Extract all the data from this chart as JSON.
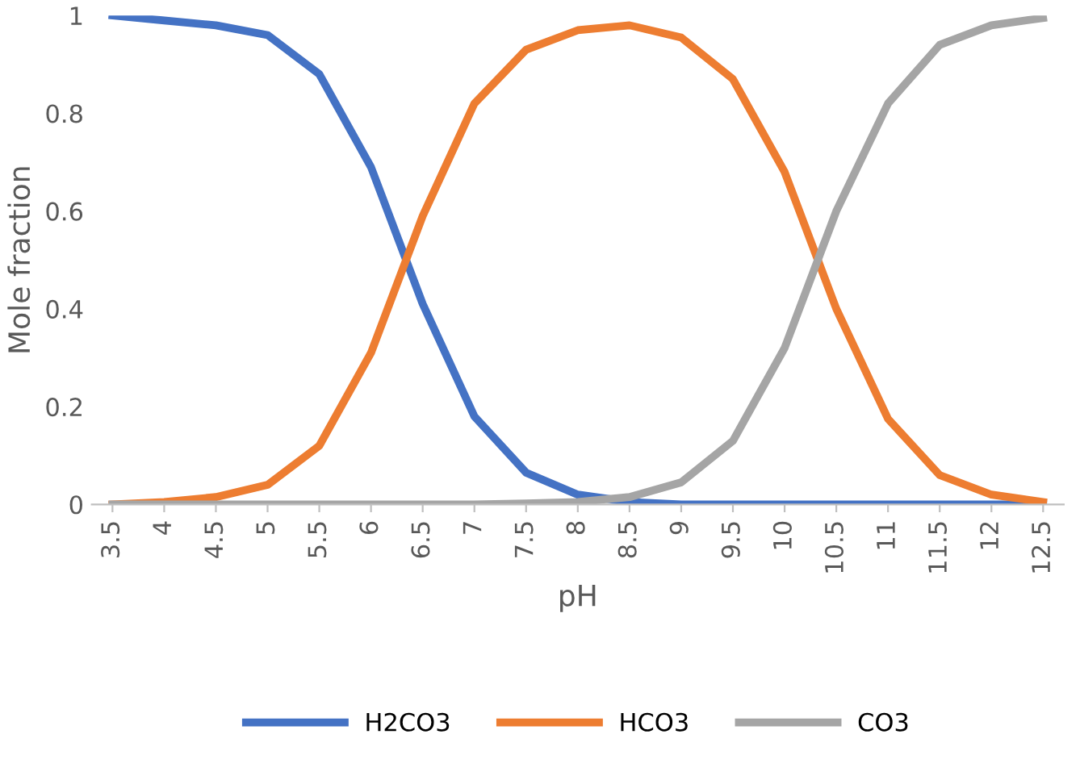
{
  "chart_data": {
    "type": "line",
    "xlabel": "pH",
    "ylabel": "Mole fraction",
    "categories": [
      "3.5",
      "4",
      "4.5",
      "5",
      "5.5",
      "6",
      "6.5",
      "7",
      "7.5",
      "8",
      "8.5",
      "9",
      "9.5",
      "10",
      "10.5",
      "11",
      "11.5",
      "12",
      "12.5"
    ],
    "series": [
      {
        "name": "H2CO3",
        "color": "#4472c4",
        "values": [
          1.0,
          0.99,
          0.98,
          0.96,
          0.88,
          0.69,
          0.41,
          0.18,
          0.065,
          0.02,
          0.005,
          0,
          0,
          0,
          0,
          0,
          0,
          0,
          0
        ]
      },
      {
        "name": "HCO3",
        "color": "#ed7d31",
        "values": [
          0,
          0.005,
          0.015,
          0.04,
          0.12,
          0.31,
          0.59,
          0.82,
          0.93,
          0.97,
          0.98,
          0.955,
          0.87,
          0.68,
          0.4,
          0.175,
          0.06,
          0.02,
          0.005
        ]
      },
      {
        "name": "CO3",
        "color": "#a5a5a5",
        "values": [
          0,
          0,
          0,
          0,
          0,
          0,
          0,
          0,
          0.002,
          0.005,
          0.015,
          0.045,
          0.13,
          0.32,
          0.6,
          0.82,
          0.94,
          0.98,
          0.995
        ]
      }
    ],
    "ylim": [
      0,
      1
    ],
    "yticks": [
      0,
      0.2,
      0.4,
      0.6,
      0.8,
      1
    ],
    "grid": false,
    "legend": "bottom",
    "marker": "none",
    "line_style": "solid"
  }
}
